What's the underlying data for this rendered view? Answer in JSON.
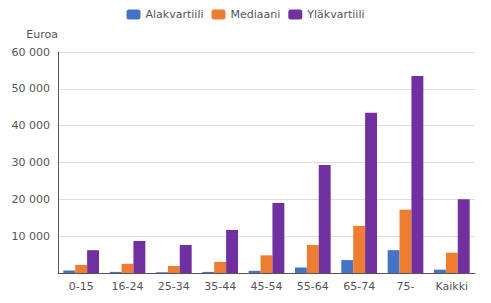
{
  "chart_data": {
    "type": "bar",
    "ylabel": "Euroa",
    "categories": [
      "0-15",
      "16-24",
      "25-34",
      "35-44",
      "45-54",
      "55-64",
      "65-74",
      "75-",
      "Kaikki"
    ],
    "series": [
      {
        "name": "Alakvartiili",
        "color": "#4472C4",
        "values": [
          700,
          300,
          200,
          300,
          600,
          1500,
          3500,
          6200,
          900
        ]
      },
      {
        "name": "Mediaani",
        "color": "#ED7D31",
        "values": [
          2200,
          2500,
          1900,
          3000,
          4800,
          7600,
          12800,
          17200,
          5500
        ]
      },
      {
        "name": "Yläkvartiili",
        "color": "#7030A0",
        "values": [
          6200,
          8700,
          7600,
          11700,
          19000,
          29300,
          43500,
          53500,
          20000
        ]
      }
    ],
    "ylim": [
      0,
      60000
    ],
    "yticks": [
      {
        "value": 10000,
        "label": "10 000"
      },
      {
        "value": 20000,
        "label": "20 000"
      },
      {
        "value": 30000,
        "label": "30 000"
      },
      {
        "value": 40000,
        "label": "40 000"
      },
      {
        "value": 50000,
        "label": "50 000"
      },
      {
        "value": 60000,
        "label": "60 000"
      }
    ],
    "grid": true,
    "legend": "top"
  }
}
